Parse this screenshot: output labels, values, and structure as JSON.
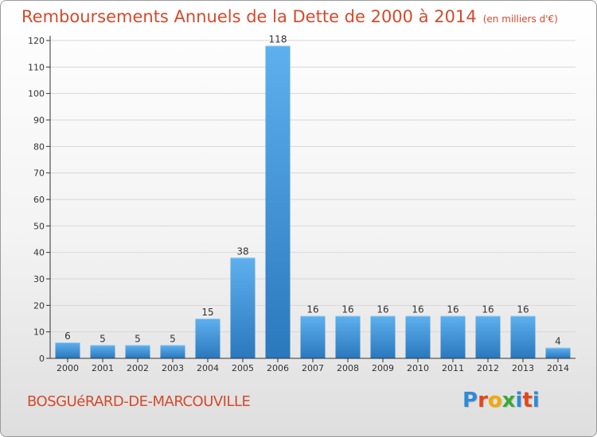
{
  "title": "Remboursements Annuels de la Dette de 2000 à 2014",
  "subtitle": "(en milliers d'€)",
  "commune": "BOSGUéRARD-DE-MARCOUVILLE",
  "logo": {
    "letters": [
      "P",
      "r",
      "o",
      "x",
      "i",
      "t",
      "i"
    ],
    "colors": [
      "#2e8bd6",
      "#e2471b",
      "#f2a900",
      "#3aa935",
      "#2e8bd6",
      "#e2471b",
      "#2e8bd6"
    ]
  },
  "colors": {
    "bar": "#4a9fe0",
    "bar_dark": "#2b7cc2",
    "accent": "#d44a2c",
    "axis": "#333333",
    "grid": "#d8d8d8"
  },
  "chart_data": {
    "type": "bar",
    "title": "Remboursements Annuels de la Dette de 2000 à 2014",
    "xlabel": "",
    "ylabel": "",
    "categories": [
      "2000",
      "2001",
      "2002",
      "2003",
      "2004",
      "2005",
      "2006",
      "2007",
      "2008",
      "2009",
      "2010",
      "2011",
      "2012",
      "2013",
      "2014"
    ],
    "values": [
      6,
      5,
      5,
      5,
      15,
      38,
      118,
      16,
      16,
      16,
      16,
      16,
      16,
      16,
      4
    ],
    "yticks": [
      0,
      10,
      20,
      30,
      40,
      50,
      60,
      70,
      80,
      90,
      100,
      110,
      120
    ],
    "ylim": [
      0,
      120
    ],
    "grid": true,
    "legend": "none"
  }
}
